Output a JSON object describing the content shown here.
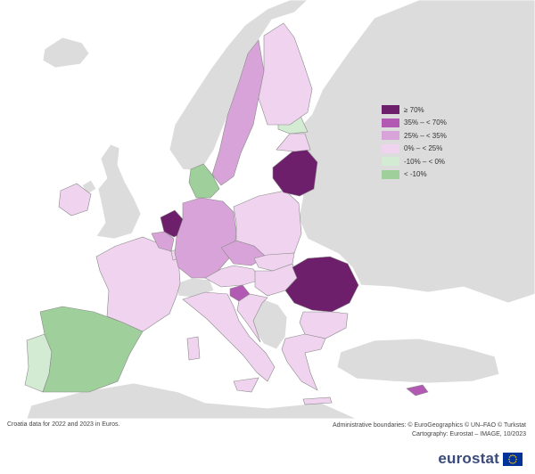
{
  "colors": {
    "sea": "#ffffff",
    "non_eu_land": "#dcdcdc",
    "border": "#8a8a8a",
    "c70plus": "#6e1f6b",
    "c35_70": "#b25ab3",
    "c25_35": "#d8a3d8",
    "c0_25": "#f0d4ef",
    "cneg10_0": "#d3ebd2",
    "cbelow_neg10": "#9fd09b"
  },
  "legend": {
    "items": [
      {
        "label": "≥ 70%",
        "color": "#6e1f6b"
      },
      {
        "label": "35% – < 70%",
        "color": "#b25ab3"
      },
      {
        "label": "25% – < 35%",
        "color": "#d8a3d8"
      },
      {
        "label": "0% – < 25%",
        "color": "#f0d4ef"
      },
      {
        "label": "-10% – < 0%",
        "color": "#d3ebd2"
      },
      {
        "label": "< -10%",
        "color": "#9fd09b"
      }
    ]
  },
  "regions": [
    {
      "name": "Netherlands",
      "class": "≥ 70%"
    },
    {
      "name": "Lithuania",
      "class": "≥ 70%"
    },
    {
      "name": "Romania",
      "class": "≥ 70%"
    },
    {
      "name": "Slovenia",
      "class": "35% – < 70%"
    },
    {
      "name": "Cyprus",
      "class": "35% – < 70%"
    },
    {
      "name": "Sweden",
      "class": "25% – < 35%"
    },
    {
      "name": "Germany",
      "class": "25% – < 35%"
    },
    {
      "name": "Czechia",
      "class": "25% – < 35%"
    },
    {
      "name": "Belgium",
      "class": "25% – < 35%"
    },
    {
      "name": "Finland",
      "class": "0% – < 25%"
    },
    {
      "name": "Ireland",
      "class": "0% – < 25%"
    },
    {
      "name": "France",
      "class": "0% – < 25%"
    },
    {
      "name": "Poland",
      "class": "0% – < 25%"
    },
    {
      "name": "Latvia",
      "class": "0% – < 25%"
    },
    {
      "name": "Austria",
      "class": "0% – < 25%"
    },
    {
      "name": "Slovakia",
      "class": "0% – < 25%"
    },
    {
      "name": "Hungary",
      "class": "0% – < 25%"
    },
    {
      "name": "Italy",
      "class": "0% – < 25%"
    },
    {
      "name": "Greece",
      "class": "0% – < 25%"
    },
    {
      "name": "Bulgaria",
      "class": "0% – < 25%"
    },
    {
      "name": "Luxembourg",
      "class": "0% – < 25%"
    },
    {
      "name": "Croatia",
      "class": "0% – < 25%"
    },
    {
      "name": "Estonia",
      "class": "-10% – < 0%"
    },
    {
      "name": "Portugal",
      "class": "-10% – < 0%"
    },
    {
      "name": "Denmark",
      "class": "< -10%"
    },
    {
      "name": "Spain",
      "class": "< -10%"
    }
  ],
  "footnote": "Croatia data for 2022 and 2023 in Euros.",
  "credits": {
    "line1": "Administrative boundaries: © EuroGeographics © UN–FAO © Turkstat",
    "line2": "Cartography: Eurostat – IMAGE, 10/2023"
  },
  "brand": {
    "text": "eurostat",
    "flag_icon": "eu-flag-icon"
  }
}
